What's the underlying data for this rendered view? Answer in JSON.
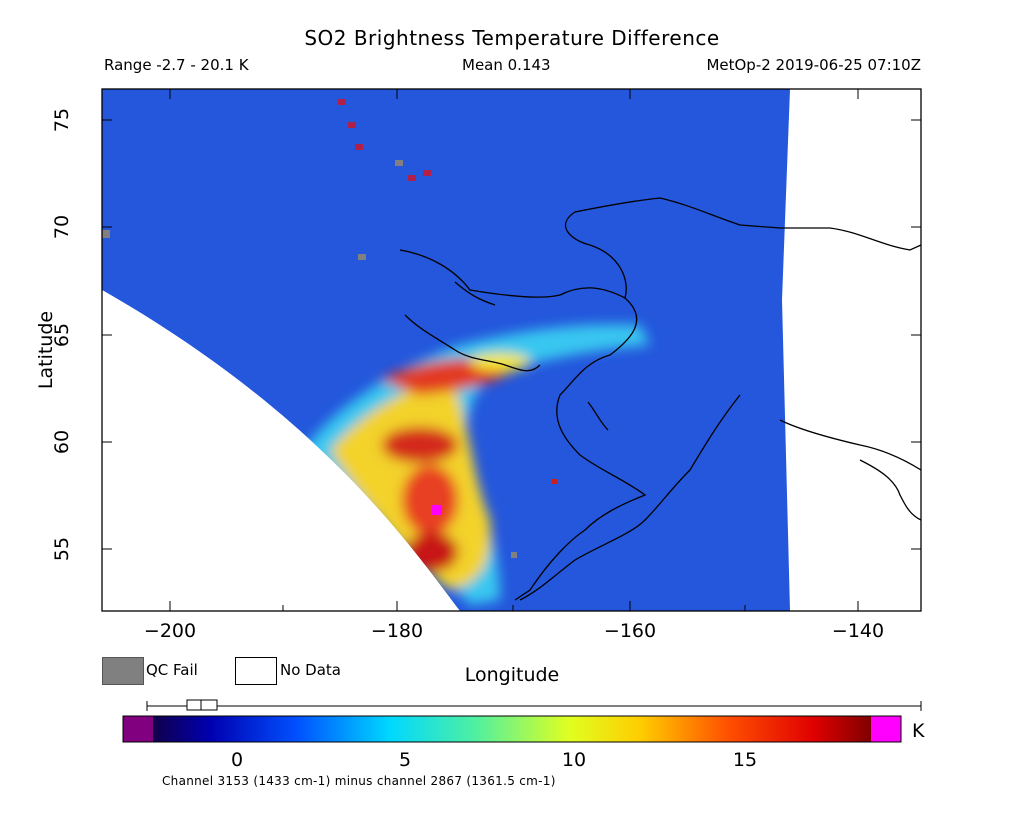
{
  "header": {
    "title": "SO2 Brightness Temperature Difference",
    "range": "Range -2.7 - 20.1 K",
    "mean": "Mean 0.143",
    "meta": "MetOp-2 2019-06-25 07:10Z"
  },
  "axes": {
    "xlabel": "Longitude",
    "ylabel": "Latitude",
    "x_ticks": [
      "−200",
      "−180",
      "−160",
      "−140"
    ],
    "y_ticks": [
      "75",
      "70",
      "65",
      "60",
      "55"
    ]
  },
  "legend": {
    "qc_fail": "QC Fail",
    "no_data": "No Data"
  },
  "colorbar": {
    "unit": "K",
    "ticks": [
      "0",
      "5",
      "10",
      "15"
    ],
    "caption": "Channel 3153 (1433 cm-1) minus channel 2867 (1361.5 cm-1)",
    "colors": {
      "underflow": "#800080",
      "overflow": "#ff00ff",
      "qc_fail": "#808080",
      "no_data": "#ffffff"
    }
  }
}
